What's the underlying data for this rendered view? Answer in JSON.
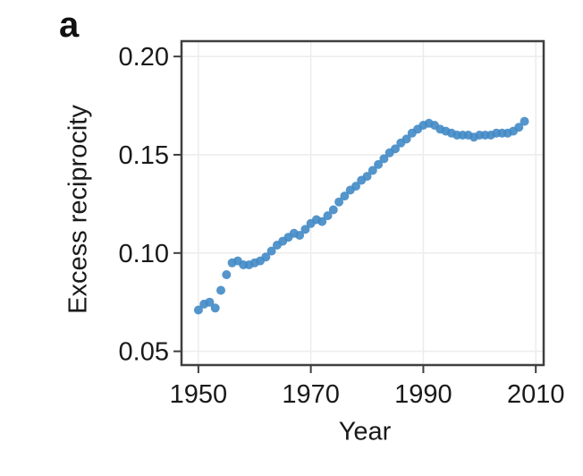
{
  "panel": {
    "label": "a"
  },
  "chart_data": {
    "type": "scatter",
    "title": "",
    "xlabel": "Year",
    "ylabel": "Excess reciprocity",
    "x_ticks": [
      1950,
      1970,
      1990,
      2010
    ],
    "y_ticks": [
      0.05,
      0.1,
      0.15,
      0.2
    ],
    "xlim": [
      1947,
      2011.4
    ],
    "ylim": [
      0.043,
      0.2078
    ],
    "grid": true,
    "legend": "none",
    "marker_color": "#4189c5",
    "frame_color": "#3f3f3f",
    "grid_color": "#ececec",
    "series": [
      {
        "name": "Excess reciprocity",
        "x": [
          1950,
          1951,
          1952,
          1953,
          1954,
          1955,
          1956,
          1957,
          1958,
          1959,
          1960,
          1961,
          1962,
          1963,
          1964,
          1965,
          1966,
          1967,
          1968,
          1969,
          1970,
          1971,
          1972,
          1973,
          1974,
          1975,
          1976,
          1977,
          1978,
          1979,
          1980,
          1981,
          1982,
          1983,
          1984,
          1985,
          1986,
          1987,
          1988,
          1989,
          1990,
          1991,
          1992,
          1993,
          1994,
          1995,
          1996,
          1997,
          1998,
          1999,
          2000,
          2001,
          2002,
          2003,
          2004,
          2005,
          2006,
          2007,
          2008
        ],
        "y": [
          0.071,
          0.074,
          0.075,
          0.072,
          0.081,
          0.089,
          0.095,
          0.096,
          0.094,
          0.094,
          0.095,
          0.096,
          0.098,
          0.101,
          0.104,
          0.106,
          0.108,
          0.11,
          0.109,
          0.112,
          0.115,
          0.117,
          0.116,
          0.119,
          0.122,
          0.126,
          0.129,
          0.132,
          0.134,
          0.137,
          0.139,
          0.142,
          0.145,
          0.148,
          0.151,
          0.153,
          0.156,
          0.158,
          0.161,
          0.163,
          0.165,
          0.166,
          0.165,
          0.163,
          0.162,
          0.161,
          0.16,
          0.16,
          0.16,
          0.159,
          0.16,
          0.16,
          0.16,
          0.161,
          0.161,
          0.161,
          0.162,
          0.164,
          0.167
        ]
      }
    ]
  }
}
